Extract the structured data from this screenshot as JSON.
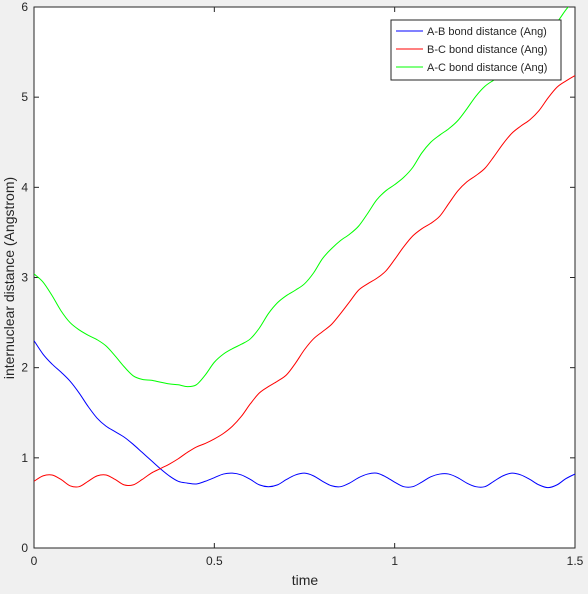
{
  "chart_data": {
    "type": "line",
    "title": "",
    "xlabel": "time",
    "ylabel": "internuclear distance (Angstrom)",
    "xlim": [
      0,
      1.5
    ],
    "ylim": [
      0,
      6
    ],
    "xticks": [
      0,
      0.5,
      1,
      1.5
    ],
    "xtick_labels": [
      "0",
      "0.5",
      "1",
      "1.5"
    ],
    "yticks": [
      0,
      1,
      2,
      3,
      4,
      5,
      6
    ],
    "ytick_labels": [
      "0",
      "1",
      "2",
      "3",
      "4",
      "5",
      "6"
    ],
    "grid": false,
    "legend_position": "top-right",
    "series": [
      {
        "name": "A-B bond distance (Ang)",
        "color": "#0000ff",
        "x": [
          0,
          0.025,
          0.05,
          0.075,
          0.1,
          0.125,
          0.15,
          0.175,
          0.2,
          0.225,
          0.25,
          0.275,
          0.3,
          0.325,
          0.35,
          0.375,
          0.4,
          0.425,
          0.45,
          0.475,
          0.5,
          0.525,
          0.55,
          0.575,
          0.6,
          0.625,
          0.65,
          0.675,
          0.7,
          0.725,
          0.75,
          0.775,
          0.8,
          0.825,
          0.85,
          0.875,
          0.9,
          0.925,
          0.95,
          0.975,
          1,
          1.025,
          1.05,
          1.075,
          1.1,
          1.125,
          1.15,
          1.175,
          1.2,
          1.225,
          1.25,
          1.275,
          1.3,
          1.325,
          1.35,
          1.375,
          1.4,
          1.425,
          1.45,
          1.475,
          1.5
        ],
        "y": [
          2.3,
          2.15,
          2.04,
          1.95,
          1.85,
          1.72,
          1.57,
          1.44,
          1.35,
          1.29,
          1.23,
          1.15,
          1.06,
          0.97,
          0.88,
          0.8,
          0.74,
          0.72,
          0.71,
          0.74,
          0.78,
          0.82,
          0.83,
          0.81,
          0.76,
          0.7,
          0.68,
          0.7,
          0.76,
          0.81,
          0.83,
          0.8,
          0.74,
          0.69,
          0.68,
          0.72,
          0.78,
          0.82,
          0.83,
          0.79,
          0.73,
          0.68,
          0.68,
          0.73,
          0.79,
          0.82,
          0.82,
          0.78,
          0.72,
          0.68,
          0.68,
          0.74,
          0.8,
          0.83,
          0.81,
          0.76,
          0.7,
          0.67,
          0.7,
          0.77,
          0.82
        ]
      },
      {
        "name": "B-C bond distance (Ang)",
        "color": "#ff0000",
        "x": [
          0,
          0.025,
          0.05,
          0.075,
          0.1,
          0.125,
          0.15,
          0.175,
          0.2,
          0.225,
          0.25,
          0.275,
          0.3,
          0.325,
          0.35,
          0.375,
          0.4,
          0.425,
          0.45,
          0.475,
          0.5,
          0.525,
          0.55,
          0.575,
          0.6,
          0.625,
          0.65,
          0.675,
          0.7,
          0.725,
          0.75,
          0.775,
          0.8,
          0.825,
          0.85,
          0.875,
          0.9,
          0.925,
          0.95,
          0.975,
          1,
          1.025,
          1.05,
          1.075,
          1.1,
          1.125,
          1.15,
          1.175,
          1.2,
          1.225,
          1.25,
          1.275,
          1.3,
          1.325,
          1.35,
          1.375,
          1.4,
          1.425,
          1.45,
          1.475,
          1.5
        ],
        "y": [
          0.74,
          0.8,
          0.81,
          0.76,
          0.69,
          0.68,
          0.74,
          0.8,
          0.81,
          0.76,
          0.7,
          0.7,
          0.76,
          0.83,
          0.88,
          0.93,
          0.99,
          1.06,
          1.12,
          1.16,
          1.21,
          1.27,
          1.35,
          1.46,
          1.6,
          1.72,
          1.79,
          1.85,
          1.92,
          2.05,
          2.2,
          2.32,
          2.4,
          2.48,
          2.6,
          2.73,
          2.86,
          2.93,
          2.99,
          3.07,
          3.2,
          3.34,
          3.46,
          3.54,
          3.6,
          3.68,
          3.82,
          3.96,
          4.06,
          4.13,
          4.21,
          4.34,
          4.48,
          4.6,
          4.68,
          4.75,
          4.85,
          4.99,
          5.11,
          5.18,
          5.24
        ]
      },
      {
        "name": "A-C bond distance (Ang)",
        "color": "#00ff00",
        "x": [
          0,
          0.025,
          0.05,
          0.075,
          0.1,
          0.125,
          0.15,
          0.175,
          0.2,
          0.225,
          0.25,
          0.275,
          0.3,
          0.325,
          0.35,
          0.375,
          0.4,
          0.425,
          0.45,
          0.475,
          0.5,
          0.525,
          0.55,
          0.575,
          0.6,
          0.625,
          0.65,
          0.675,
          0.7,
          0.725,
          0.75,
          0.775,
          0.8,
          0.825,
          0.85,
          0.875,
          0.9,
          0.925,
          0.95,
          0.975,
          1,
          1.025,
          1.05,
          1.075,
          1.1,
          1.125,
          1.15,
          1.175,
          1.2,
          1.225,
          1.25,
          1.275,
          1.3,
          1.325,
          1.35,
          1.375,
          1.4,
          1.425,
          1.45,
          1.475,
          1.5
        ],
        "y": [
          3.04,
          2.95,
          2.8,
          2.63,
          2.5,
          2.42,
          2.36,
          2.31,
          2.24,
          2.13,
          2.01,
          1.91,
          1.87,
          1.86,
          1.84,
          1.82,
          1.81,
          1.79,
          1.81,
          1.92,
          2.06,
          2.15,
          2.21,
          2.26,
          2.32,
          2.44,
          2.6,
          2.72,
          2.8,
          2.86,
          2.93,
          3.05,
          3.21,
          3.32,
          3.41,
          3.48,
          3.57,
          3.71,
          3.86,
          3.96,
          4.03,
          4.11,
          4.22,
          4.38,
          4.5,
          4.58,
          4.65,
          4.74,
          4.87,
          5.01,
          5.12,
          5.19,
          5.26,
          5.37,
          5.5,
          5.61,
          5.67,
          5.73,
          5.83,
          5.97,
          6.09
        ]
      }
    ]
  }
}
